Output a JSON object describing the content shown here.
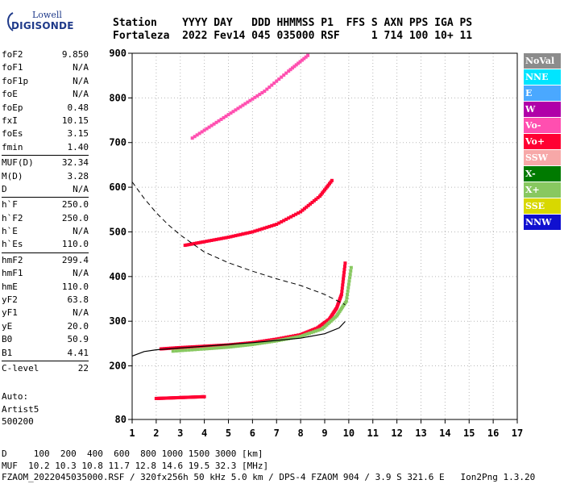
{
  "logo": {
    "line1": "Lowell",
    "line2": "DIGISONDE"
  },
  "header": {
    "line1": "Station    YYYY DAY   DDD HHMMSS P1  FFS S AXN PPS IGA PS",
    "line2": "Fortaleza  2022 Fev14 045 035000 RSF     1 714 100 10+ 11"
  },
  "params": [
    {
      "label": "foF2",
      "value": "9.850"
    },
    {
      "label": "foF1",
      "value": "N/A"
    },
    {
      "label": "foF1p",
      "value": "N/A"
    },
    {
      "label": "foE",
      "value": "N/A"
    },
    {
      "label": "foEp",
      "value": "0.48"
    },
    {
      "label": "fxI",
      "value": "10.15"
    },
    {
      "label": "foEs",
      "value": "3.15"
    },
    {
      "label": "fmin",
      "value": "1.40"
    },
    {
      "label": "MUF(D)",
      "value": "32.34",
      "sep": true
    },
    {
      "label": "M(D)",
      "value": "3.28"
    },
    {
      "label": "D",
      "value": "N/A"
    },
    {
      "label": "h`F",
      "value": "250.0",
      "sep": true
    },
    {
      "label": "h`F2",
      "value": "250.0"
    },
    {
      "label": "h`E",
      "value": "N/A"
    },
    {
      "label": "h`Es",
      "value": "110.0"
    },
    {
      "label": "hmF2",
      "value": "299.4",
      "sep": true
    },
    {
      "label": "hmF1",
      "value": "N/A"
    },
    {
      "label": "hmE",
      "value": "110.0"
    },
    {
      "label": "yF2",
      "value": "63.8"
    },
    {
      "label": "yF1",
      "value": "N/A"
    },
    {
      "label": "yE",
      "value": "20.0"
    },
    {
      "label": "B0",
      "value": "50.9"
    },
    {
      "label": "B1",
      "value": "4.41"
    },
    {
      "label": "C-level",
      "value": "22",
      "sep": true
    }
  ],
  "auto": {
    "l1": "Auto:",
    "l2": "Artist5",
    "l3": "500200"
  },
  "legend": [
    {
      "label": "NoVal",
      "color": "#8c8c8c"
    },
    {
      "label": "NNE",
      "color": "#00e5ff"
    },
    {
      "label": "E",
      "color": "#4aa8ff"
    },
    {
      "label": "W",
      "color": "#b000a8"
    },
    {
      "label": "Vo-",
      "color": "#ff4fb0"
    },
    {
      "label": "Vo+",
      "color": "#ff0033"
    },
    {
      "label": "SSW",
      "color": "#f7a8a8"
    },
    {
      "label": "X-",
      "color": "#007a00"
    },
    {
      "label": "X+",
      "color": "#88c860"
    },
    {
      "label": "SSE",
      "color": "#d8d800"
    },
    {
      "label": "NNW",
      "color": "#1010d0"
    }
  ],
  "footer": {
    "l1": "D     100  200  400  600  800 1000 1500 3000 [km]",
    "l2": "MUF  10.2 10.3 10.8 11.7 12.8 14.6 19.5 32.3 [MHz]",
    "l3": "FZAOM_2022045035000.RSF / 320fx256h 50 kHz 5.0 km / DPS-4 FZAOM 904 / 3.9 S 321.6 E   Ion2Png 1.3.20"
  },
  "chart_data": {
    "type": "scatter",
    "xlim": [
      1,
      17
    ],
    "ylim": [
      80,
      900
    ],
    "xticks": [
      1,
      2,
      3,
      4,
      5,
      6,
      7,
      8,
      9,
      10,
      11,
      12,
      13,
      14,
      15,
      16,
      17
    ],
    "yticks": [
      80,
      200,
      300,
      400,
      500,
      600,
      700,
      800,
      900
    ],
    "grid": true,
    "traces": [
      {
        "name": "F2 trace",
        "color": "#ff0033",
        "points": [
          [
            2.2,
            238
          ],
          [
            3,
            241
          ],
          [
            4,
            244
          ],
          [
            5,
            247
          ],
          [
            6,
            252
          ],
          [
            7,
            260
          ],
          [
            8,
            270
          ],
          [
            8.7,
            285
          ],
          [
            9.2,
            305
          ],
          [
            9.5,
            330
          ],
          [
            9.7,
            360
          ],
          [
            9.85,
            430
          ]
        ]
      },
      {
        "name": "F2 2-hop",
        "color": "#ff0033",
        "points": [
          [
            3.2,
            470
          ],
          [
            4,
            478
          ],
          [
            5,
            488
          ],
          [
            6,
            500
          ],
          [
            7,
            517
          ],
          [
            8,
            545
          ],
          [
            8.8,
            580
          ],
          [
            9.3,
            615
          ]
        ]
      },
      {
        "name": "F2 3-hop",
        "color": "#ff4fb0",
        "points": [
          [
            3.5,
            710
          ],
          [
            4.5,
            745
          ],
          [
            5.5,
            780
          ],
          [
            6.5,
            815
          ],
          [
            7.5,
            860
          ],
          [
            8.3,
            895
          ]
        ]
      },
      {
        "name": "Es trace",
        "color": "#ff0033",
        "points": [
          [
            2,
            127
          ],
          [
            2.5,
            128
          ],
          [
            3,
            129
          ],
          [
            3.5,
            130
          ],
          [
            4,
            131
          ]
        ]
      },
      {
        "name": "X trace",
        "color": "#88c860",
        "points": [
          [
            2.7,
            233
          ],
          [
            4,
            238
          ],
          [
            5,
            242
          ],
          [
            6,
            248
          ],
          [
            7,
            256
          ],
          [
            8,
            266
          ],
          [
            8.9,
            283
          ],
          [
            9.5,
            312
          ],
          [
            9.9,
            345
          ],
          [
            10.1,
            420
          ]
        ]
      }
    ],
    "profile": {
      "name": "Electron density profile",
      "points": [
        [
          1,
          222
        ],
        [
          1.5,
          232
        ],
        [
          2,
          236
        ],
        [
          3,
          240
        ],
        [
          4,
          244
        ],
        [
          5,
          248
        ],
        [
          6,
          252
        ],
        [
          7,
          257
        ],
        [
          8,
          262
        ],
        [
          9,
          272
        ],
        [
          9.6,
          285
        ],
        [
          9.85,
          299.4
        ]
      ]
    },
    "muf_curve": {
      "name": "MUF curve",
      "points": [
        [
          1,
          612
        ],
        [
          1.5,
          575
        ],
        [
          2,
          543
        ],
        [
          2.5,
          516
        ],
        [
          3,
          493
        ],
        [
          4,
          455
        ],
        [
          5,
          431
        ],
        [
          6,
          412
        ],
        [
          7,
          395
        ],
        [
          8,
          380
        ],
        [
          9,
          360
        ],
        [
          9.85,
          337
        ]
      ]
    }
  }
}
